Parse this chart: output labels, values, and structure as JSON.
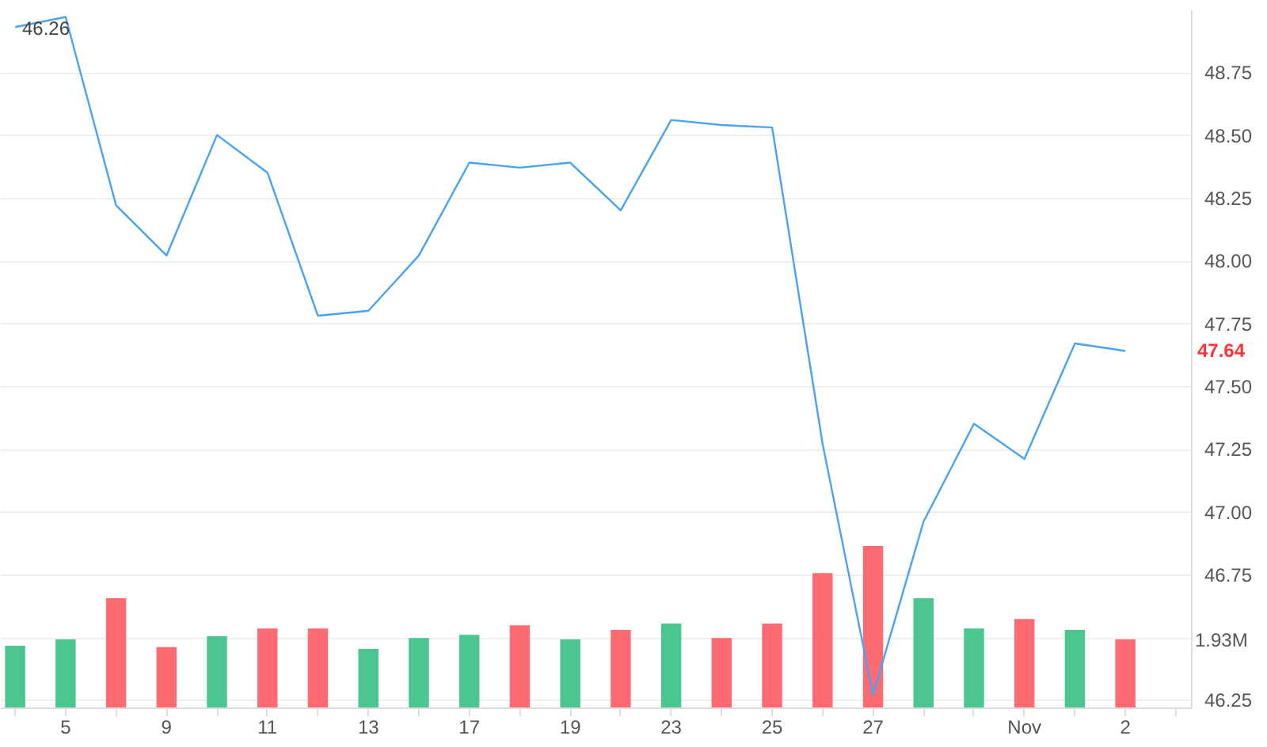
{
  "chart_data": {
    "type": "line",
    "categories": [
      null,
      "5",
      null,
      "9",
      null,
      "11",
      null,
      "13",
      null,
      "17",
      null,
      "19",
      null,
      "23",
      null,
      "25",
      null,
      "27",
      null,
      null,
      "Nov",
      null,
      "2",
      null
    ],
    "series": [
      {
        "color": "#4aa3f0",
        "values": [
          48.93,
          48.97,
          48.22,
          48.02,
          48.5,
          48.35,
          47.78,
          47.8,
          48.02,
          48.39,
          48.37,
          48.39,
          48.2,
          48.56,
          48.54,
          48.53,
          47.27,
          46.27,
          46.96,
          47.35,
          47.21,
          47.67,
          47.64,
          null
        ]
      },
      {
        "type": "bar",
        "axis": "y2",
        "colors": [
          "#4bc690",
          "#4bc690",
          "#ff6b73",
          "#ff6b73",
          "#4bc690",
          "#ff6b73",
          "#ff6b73",
          "#4bc690",
          "#4bc690",
          "#4bc690",
          "#ff6b73",
          "#4bc690",
          "#ff6b73",
          "#4bc690",
          "#ff6b73",
          "#ff6b73",
          "#ff6b73",
          "#ff6b73",
          "#4bc690",
          "#4bc690",
          "#ff6b73",
          "#4bc690",
          "#ff6b73",
          null
        ],
        "values": [
          1.75,
          1.93,
          3.1,
          1.71,
          2.02,
          2.24,
          2.24,
          1.66,
          1.97,
          2.06,
          2.33,
          1.93,
          2.2,
          2.38,
          1.97,
          2.38,
          3.81,
          4.58,
          3.1,
          2.24,
          2.51,
          2.2,
          1.93,
          null
        ]
      }
    ],
    "ylim": [
      46.22,
      49.0
    ],
    "yticks": [
      {
        "value": 46.25,
        "label": "46.25"
      },
      {
        "value": 46.5,
        "label": null
      },
      {
        "value": 46.75,
        "label": "46.75"
      },
      {
        "value": 47,
        "label": "47.00"
      },
      {
        "value": 47.25,
        "label": "47.25"
      },
      {
        "value": 47.5,
        "label": "47.50"
      },
      {
        "value": 47.75,
        "label": "47.75"
      },
      {
        "value": 48,
        "label": "48.00"
      },
      {
        "value": 48.25,
        "label": "48.25"
      },
      {
        "value": 48.5,
        "label": "48.50"
      },
      {
        "value": 48.75,
        "label": "48.75"
      }
    ],
    "y2lim": [
      0,
      19.8
    ],
    "y2ticks": [
      {
        "value": 1.93,
        "label": "1.93M"
      }
    ],
    "grid": "y",
    "annotations": [
      "46.26",
      "47.64"
    ]
  }
}
